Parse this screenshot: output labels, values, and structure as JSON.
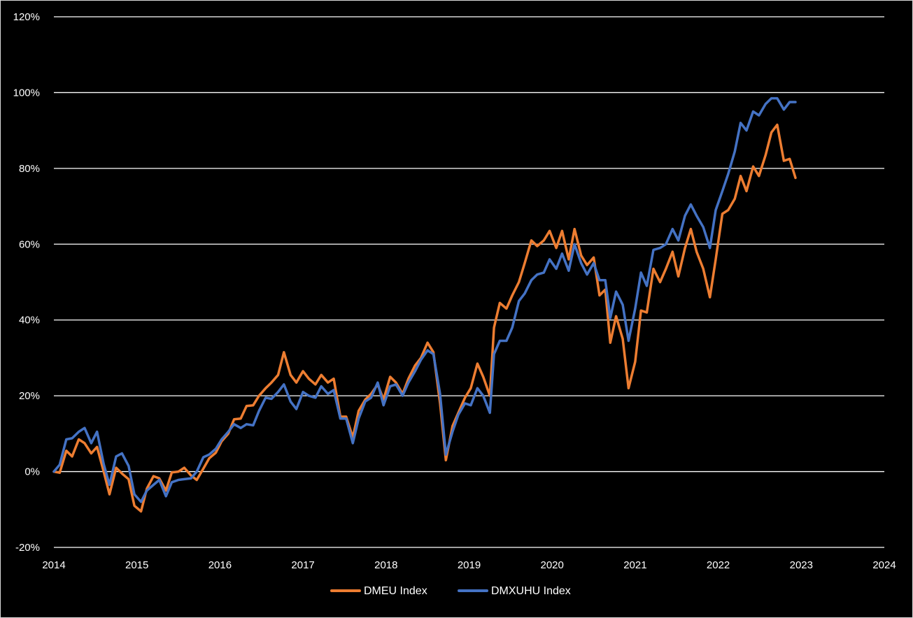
{
  "chart_data": {
    "type": "line",
    "title": "",
    "xlabel": "",
    "ylabel": "",
    "x_ticks": [
      "2014",
      "2015",
      "2016",
      "2017",
      "2018",
      "2019",
      "2020",
      "2021",
      "2022",
      "2023",
      "2024"
    ],
    "y_ticks": [
      "-20%",
      "0%",
      "20%",
      "40%",
      "60%",
      "80%",
      "100%",
      "120%"
    ],
    "ylim": [
      -20,
      120
    ],
    "xlim": [
      2014.0,
      2024.0
    ],
    "grid": "horizontal",
    "legend_position": "bottom",
    "series": [
      {
        "name": "DMEU Index",
        "color": "#ED7D31",
        "points": [
          [
            2014.0,
            0
          ],
          [
            2014.07,
            -0.3
          ],
          [
            2014.15,
            5.5
          ],
          [
            2014.22,
            4
          ],
          [
            2014.3,
            8.5
          ],
          [
            2014.37,
            7.5
          ],
          [
            2014.45,
            4.8
          ],
          [
            2014.52,
            6.5
          ],
          [
            2014.6,
            0
          ],
          [
            2014.67,
            -6
          ],
          [
            2014.75,
            1
          ],
          [
            2014.82,
            -0.5
          ],
          [
            2014.9,
            -2
          ],
          [
            2014.97,
            -9
          ],
          [
            2015.05,
            -10.5
          ],
          [
            2015.12,
            -4.5
          ],
          [
            2015.2,
            -1.2
          ],
          [
            2015.27,
            -1.8
          ],
          [
            2015.35,
            -5
          ],
          [
            2015.42,
            -0.2
          ],
          [
            2015.5,
            0
          ],
          [
            2015.57,
            1
          ],
          [
            2015.65,
            -1
          ],
          [
            2015.72,
            -2.2
          ],
          [
            2015.8,
            0.8
          ],
          [
            2015.87,
            3.5
          ],
          [
            2015.95,
            5
          ],
          [
            2016.02,
            8
          ],
          [
            2016.1,
            10
          ],
          [
            2016.17,
            13.8
          ],
          [
            2016.25,
            14
          ],
          [
            2016.32,
            17.3
          ],
          [
            2016.4,
            17.5
          ],
          [
            2016.47,
            20
          ],
          [
            2016.55,
            22
          ],
          [
            2016.62,
            23.5
          ],
          [
            2016.7,
            25.5
          ],
          [
            2016.77,
            31.5
          ],
          [
            2016.85,
            25.5
          ],
          [
            2016.92,
            23.5
          ],
          [
            2017.0,
            26.5
          ],
          [
            2017.07,
            24.5
          ],
          [
            2017.15,
            23
          ],
          [
            2017.22,
            25.5
          ],
          [
            2017.3,
            23.5
          ],
          [
            2017.37,
            24.5
          ],
          [
            2017.45,
            14.5
          ],
          [
            2017.52,
            14.5
          ],
          [
            2017.6,
            9
          ],
          [
            2017.67,
            16
          ],
          [
            2017.75,
            19
          ],
          [
            2017.82,
            20.5
          ],
          [
            2017.9,
            23
          ],
          [
            2017.97,
            19
          ],
          [
            2018.05,
            25
          ],
          [
            2018.12,
            23.5
          ],
          [
            2018.2,
            20.5
          ],
          [
            2018.27,
            24.5
          ],
          [
            2018.35,
            28
          ],
          [
            2018.42,
            30
          ],
          [
            2018.5,
            34
          ],
          [
            2018.57,
            31.5
          ],
          [
            2018.65,
            18
          ],
          [
            2018.72,
            3
          ],
          [
            2018.8,
            12
          ],
          [
            2018.87,
            15.5
          ],
          [
            2018.95,
            19.5
          ],
          [
            2019.02,
            22
          ],
          [
            2019.1,
            28.5
          ],
          [
            2019.17,
            25
          ],
          [
            2019.25,
            20
          ],
          [
            2019.3,
            38
          ],
          [
            2019.37,
            44.5
          ],
          [
            2019.45,
            43
          ],
          [
            2019.52,
            46.5
          ],
          [
            2019.6,
            50
          ],
          [
            2019.67,
            55
          ],
          [
            2019.75,
            61
          ],
          [
            2019.82,
            59.5
          ],
          [
            2019.9,
            61
          ],
          [
            2019.97,
            63.5
          ],
          [
            2020.05,
            59
          ],
          [
            2020.12,
            63.5
          ],
          [
            2020.2,
            56
          ],
          [
            2020.27,
            64
          ],
          [
            2020.35,
            57
          ],
          [
            2020.42,
            54.5
          ],
          [
            2020.5,
            56.5
          ],
          [
            2020.57,
            46.5
          ],
          [
            2020.64,
            48
          ],
          [
            2020.7,
            34
          ],
          [
            2020.77,
            41
          ],
          [
            2020.85,
            35
          ],
          [
            2020.92,
            22
          ],
          [
            2021.0,
            29
          ],
          [
            2021.07,
            42.5
          ],
          [
            2021.14,
            42
          ],
          [
            2021.22,
            53.5
          ],
          [
            2021.3,
            50
          ],
          [
            2021.37,
            53.5
          ],
          [
            2021.45,
            58
          ],
          [
            2021.52,
            51.5
          ],
          [
            2021.6,
            59
          ],
          [
            2021.67,
            64
          ],
          [
            2021.74,
            58
          ],
          [
            2021.82,
            53.5
          ],
          [
            2021.9,
            46
          ],
          [
            2021.97,
            56
          ],
          [
            2022.05,
            68
          ],
          [
            2022.12,
            69
          ],
          [
            2022.2,
            72
          ],
          [
            2022.27,
            78
          ],
          [
            2022.34,
            74
          ],
          [
            2022.42,
            80.5
          ],
          [
            2022.49,
            78
          ],
          [
            2022.57,
            83.5
          ],
          [
            2022.64,
            89.5
          ],
          [
            2022.71,
            91.5
          ],
          [
            2022.79,
            82
          ],
          [
            2022.86,
            82.5
          ],
          [
            2022.93,
            77.5
          ]
        ]
      },
      {
        "name": "DMXUHU Index",
        "color": "#4472C4",
        "points": [
          [
            2014.0,
            0
          ],
          [
            2014.07,
            1.8
          ],
          [
            2014.15,
            8.5
          ],
          [
            2014.22,
            8.8
          ],
          [
            2014.3,
            10.5
          ],
          [
            2014.37,
            11.5
          ],
          [
            2014.45,
            7.5
          ],
          [
            2014.52,
            10.5
          ],
          [
            2014.6,
            2
          ],
          [
            2014.67,
            -3.5
          ],
          [
            2014.75,
            4
          ],
          [
            2014.82,
            4.8
          ],
          [
            2014.9,
            1.5
          ],
          [
            2014.97,
            -6
          ],
          [
            2015.05,
            -8
          ],
          [
            2015.12,
            -5
          ],
          [
            2015.2,
            -3.5
          ],
          [
            2015.27,
            -2.2
          ],
          [
            2015.35,
            -6.5
          ],
          [
            2015.42,
            -2.8
          ],
          [
            2015.5,
            -2.2
          ],
          [
            2015.57,
            -2
          ],
          [
            2015.65,
            -1.8
          ],
          [
            2015.72,
            0
          ],
          [
            2015.8,
            3.8
          ],
          [
            2015.87,
            4.5
          ],
          [
            2015.95,
            6
          ],
          [
            2016.02,
            8.5
          ],
          [
            2016.1,
            10.5
          ],
          [
            2016.17,
            12.5
          ],
          [
            2016.25,
            11.5
          ],
          [
            2016.32,
            12.5
          ],
          [
            2016.4,
            12.2
          ],
          [
            2016.47,
            16
          ],
          [
            2016.55,
            19.5
          ],
          [
            2016.62,
            19.2
          ],
          [
            2016.7,
            21
          ],
          [
            2016.77,
            23
          ],
          [
            2016.85,
            18.5
          ],
          [
            2016.92,
            16.5
          ],
          [
            2017.0,
            21
          ],
          [
            2017.07,
            20
          ],
          [
            2017.15,
            19.5
          ],
          [
            2017.22,
            22.5
          ],
          [
            2017.3,
            20.5
          ],
          [
            2017.37,
            21.5
          ],
          [
            2017.45,
            14
          ],
          [
            2017.52,
            14
          ],
          [
            2017.6,
            7.5
          ],
          [
            2017.67,
            14
          ],
          [
            2017.75,
            18.5
          ],
          [
            2017.82,
            19.5
          ],
          [
            2017.9,
            23.5
          ],
          [
            2017.97,
            17.5
          ],
          [
            2018.05,
            22.5
          ],
          [
            2018.12,
            23
          ],
          [
            2018.2,
            20
          ],
          [
            2018.27,
            23.5
          ],
          [
            2018.35,
            26.5
          ],
          [
            2018.42,
            29.5
          ],
          [
            2018.5,
            32
          ],
          [
            2018.57,
            31
          ],
          [
            2018.65,
            20.5
          ],
          [
            2018.72,
            4.5
          ],
          [
            2018.8,
            10.5
          ],
          [
            2018.87,
            15
          ],
          [
            2018.95,
            18
          ],
          [
            2019.02,
            17.5
          ],
          [
            2019.1,
            22
          ],
          [
            2019.17,
            20
          ],
          [
            2019.25,
            15.5
          ],
          [
            2019.3,
            31
          ],
          [
            2019.37,
            34.5
          ],
          [
            2019.45,
            34.5
          ],
          [
            2019.52,
            38
          ],
          [
            2019.6,
            45
          ],
          [
            2019.67,
            47
          ],
          [
            2019.75,
            50.5
          ],
          [
            2019.82,
            52
          ],
          [
            2019.9,
            52.5
          ],
          [
            2019.97,
            56
          ],
          [
            2020.05,
            53.5
          ],
          [
            2020.12,
            57.5
          ],
          [
            2020.2,
            53
          ],
          [
            2020.27,
            60
          ],
          [
            2020.35,
            55
          ],
          [
            2020.42,
            52
          ],
          [
            2020.5,
            55
          ],
          [
            2020.57,
            50.5
          ],
          [
            2020.64,
            50.5
          ],
          [
            2020.7,
            40.5
          ],
          [
            2020.77,
            47.5
          ],
          [
            2020.85,
            44
          ],
          [
            2020.92,
            34.5
          ],
          [
            2021.0,
            43
          ],
          [
            2021.07,
            52.5
          ],
          [
            2021.14,
            49
          ],
          [
            2021.22,
            58.5
          ],
          [
            2021.3,
            59
          ],
          [
            2021.37,
            60
          ],
          [
            2021.45,
            64
          ],
          [
            2021.52,
            61
          ],
          [
            2021.6,
            67.5
          ],
          [
            2021.67,
            70.5
          ],
          [
            2021.74,
            67.5
          ],
          [
            2021.82,
            64.5
          ],
          [
            2021.9,
            59
          ],
          [
            2021.97,
            69
          ],
          [
            2022.05,
            74
          ],
          [
            2022.12,
            78.5
          ],
          [
            2022.2,
            84.5
          ],
          [
            2022.27,
            92
          ],
          [
            2022.34,
            90
          ],
          [
            2022.42,
            95
          ],
          [
            2022.49,
            94
          ],
          [
            2022.57,
            97
          ],
          [
            2022.64,
            98.5
          ],
          [
            2022.71,
            98.5
          ],
          [
            2022.79,
            95.5
          ],
          [
            2022.86,
            97.5
          ],
          [
            2022.93,
            97.5
          ]
        ]
      }
    ]
  }
}
